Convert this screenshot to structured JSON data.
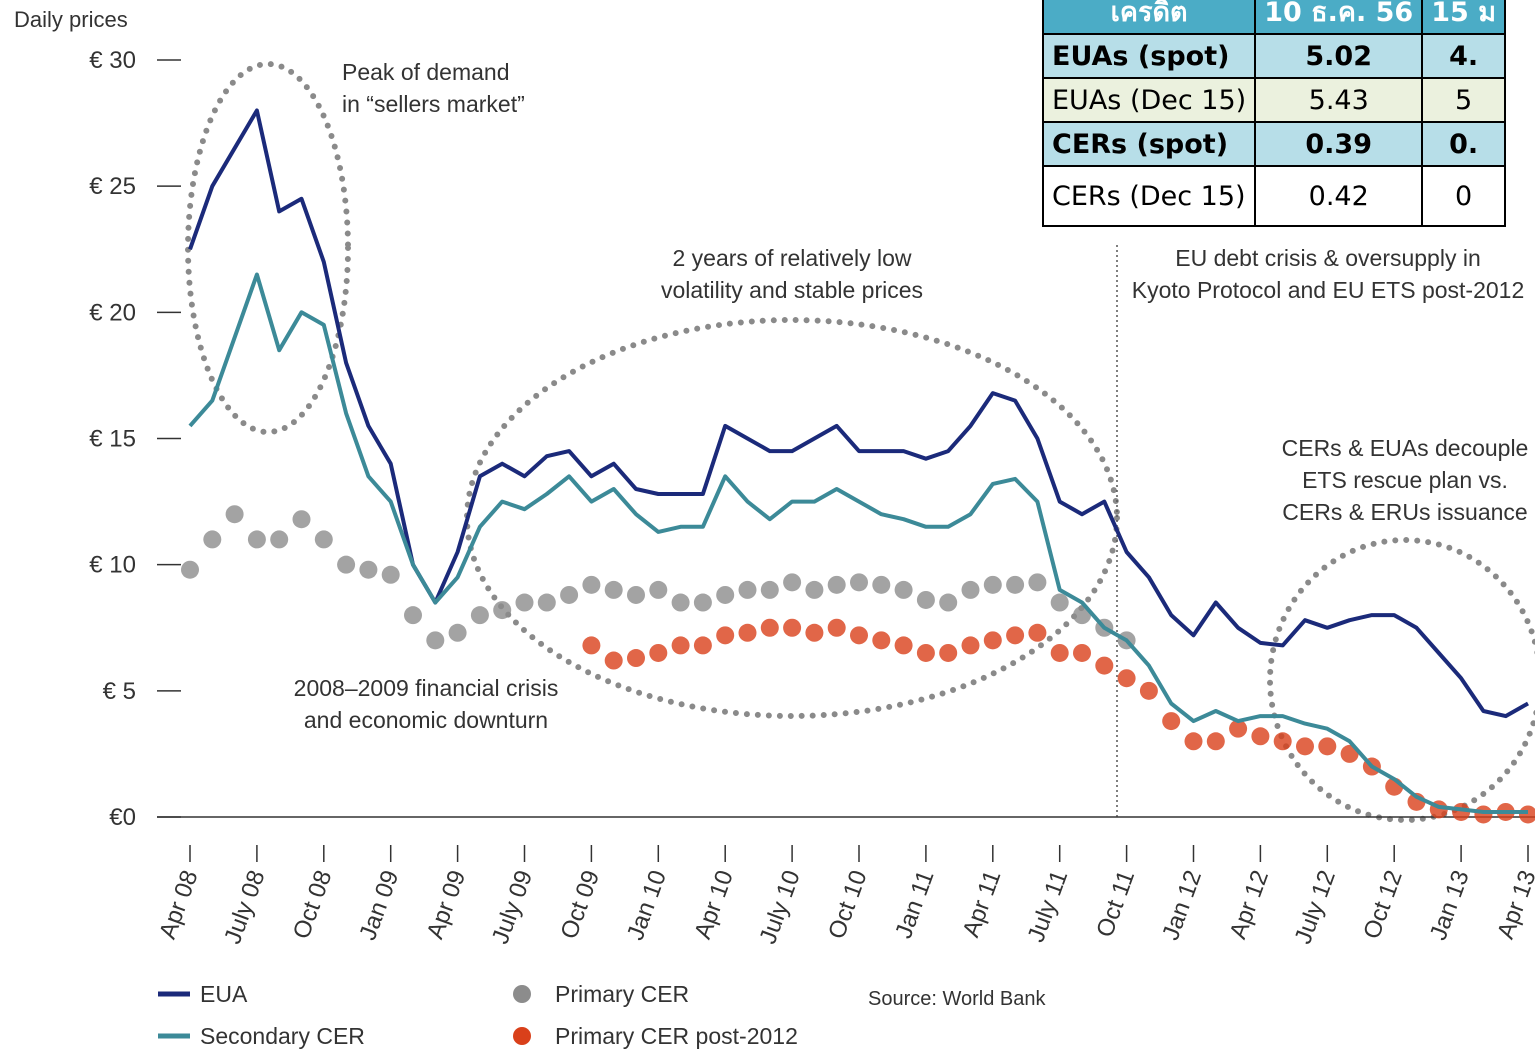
{
  "chart_data": {
    "type": "line",
    "y_label": "Daily prices",
    "categories": [
      "Apr 08",
      null,
      null,
      "July 08",
      null,
      null,
      "Oct 08",
      null,
      null,
      "Jan 09",
      null,
      null,
      "Apr 09",
      null,
      null,
      "July 09",
      null,
      null,
      "Oct 09",
      null,
      null,
      "Jan 10",
      null,
      null,
      "Apr 10",
      null,
      null,
      "July 10",
      null,
      null,
      "Oct 10",
      null,
      null,
      "Jan 11",
      null,
      null,
      "Apr 11",
      null,
      null,
      "July 11",
      null,
      null,
      "Oct 11",
      null,
      null,
      "Jan 12",
      null,
      null,
      "Apr 12",
      null,
      null,
      "July 12",
      null,
      null,
      "Oct 12",
      null,
      null,
      "Jan 13",
      null,
      null,
      "Apr 13"
    ],
    "ylim": [
      0,
      30
    ],
    "yticks": [
      {
        "value": 0,
        "label": "€0"
      },
      {
        "value": 5,
        "label": "€ 5"
      },
      {
        "value": 10,
        "label": "€ 10"
      },
      {
        "value": 15,
        "label": "€ 15"
      },
      {
        "value": 20,
        "label": "€ 20"
      },
      {
        "value": 25,
        "label": "€ 25"
      },
      {
        "value": 30,
        "label": "€ 30"
      }
    ],
    "series": [
      {
        "name": "EUA",
        "color": "#1b2a7a",
        "mark": "line",
        "values": [
          22.5,
          25,
          26.5,
          28,
          24,
          24.5,
          22,
          18,
          15.5,
          14,
          10,
          8.5,
          10.5,
          13.5,
          14,
          13.5,
          14.3,
          14.5,
          13.5,
          14,
          13,
          12.8,
          12.8,
          12.8,
          15.5,
          15,
          14.5,
          14.5,
          15,
          15.5,
          14.5,
          14.5,
          14.5,
          14.2,
          14.5,
          15.5,
          16.8,
          16.5,
          15,
          12.5,
          12,
          12.5,
          10.5,
          9.5,
          8,
          7.2,
          8.5,
          7.5,
          6.9,
          6.8,
          7.8,
          7.5,
          7.8,
          8,
          8,
          7.5,
          6.5,
          5.5,
          4.2,
          4,
          4.5
        ]
      },
      {
        "name": "Secondary CER",
        "color": "#3c8a98",
        "mark": "line",
        "values": [
          15.5,
          16.5,
          19,
          21.5,
          18.5,
          20,
          19.5,
          16,
          13.5,
          12.5,
          10,
          8.5,
          9.5,
          11.5,
          12.5,
          12.2,
          12.8,
          13.5,
          12.5,
          13,
          12,
          11.3,
          11.5,
          11.5,
          13.5,
          12.5,
          11.8,
          12.5,
          12.5,
          13,
          12.5,
          12,
          11.8,
          11.5,
          11.5,
          12,
          13.2,
          13.4,
          12.5,
          9,
          8.5,
          7.5,
          7,
          6,
          4.5,
          3.8,
          4.2,
          3.8,
          4,
          4,
          3.7,
          3.5,
          3,
          2,
          1.5,
          0.8,
          0.4,
          0.3,
          0.2,
          0.2,
          0.2
        ]
      },
      {
        "name": "Primary CER",
        "color": "#8c8c8c",
        "mark": "dot",
        "values": [
          9.8,
          11,
          12,
          11,
          11,
          11.8,
          11,
          10,
          9.8,
          9.6,
          8,
          7,
          7.3,
          8,
          8.2,
          8.5,
          8.5,
          8.8,
          9.2,
          9,
          8.8,
          9,
          8.5,
          8.5,
          8.8,
          9,
          9,
          9.3,
          9,
          9.2,
          9.3,
          9.2,
          9,
          8.6,
          8.5,
          9,
          9.2,
          9.2,
          9.3,
          8.5,
          8,
          7.5,
          7,
          null,
          null,
          null,
          null,
          null,
          null,
          null,
          null,
          null,
          null,
          null,
          null,
          null,
          null,
          null,
          null,
          null,
          null
        ]
      },
      {
        "name": "Primary CER post-2012",
        "color": "#d9401a",
        "mark": "dot",
        "values": [
          null,
          null,
          null,
          null,
          null,
          null,
          null,
          null,
          null,
          null,
          null,
          null,
          null,
          null,
          null,
          null,
          null,
          null,
          6.8,
          6.2,
          6.3,
          6.5,
          6.8,
          6.8,
          7.2,
          7.3,
          7.5,
          7.5,
          7.3,
          7.5,
          7.2,
          7,
          6.8,
          6.5,
          6.5,
          6.8,
          7,
          7.2,
          7.3,
          6.5,
          6.5,
          6,
          5.5,
          5,
          3.8,
          3,
          3,
          3.5,
          3.2,
          3,
          2.8,
          2.8,
          2.5,
          2,
          1.2,
          0.6,
          0.3,
          0.2,
          0.1,
          0.2,
          0.1
        ]
      }
    ],
    "annotations": [
      [
        "Peak of demand",
        "in “sellers market”"
      ],
      [
        "2 years of relatively low",
        "volatility and stable prices"
      ],
      [
        "EU debt crisis & oversupply in",
        "Kyoto Protocol and EU ETS post-2012"
      ],
      [
        "CERs & EUAs decouple",
        "ETS rescue plan vs.",
        "CERs & ERUs issuance"
      ],
      [
        "2008–2009 financial crisis",
        "and economic downturn"
      ]
    ],
    "source": "Source: World Bank"
  },
  "table": {
    "header": [
      "เครดิต",
      "10 ธ.ค. 56",
      "15 ม"
    ],
    "rows": [
      [
        "EUAs (spot)",
        "5.02",
        "4."
      ],
      [
        "EUAs (Dec 15)",
        "5.43",
        "5"
      ],
      [
        "CERs (spot)",
        "0.39",
        "0."
      ],
      [
        "CERs (Dec 15)",
        "0.42",
        "0"
      ]
    ]
  }
}
